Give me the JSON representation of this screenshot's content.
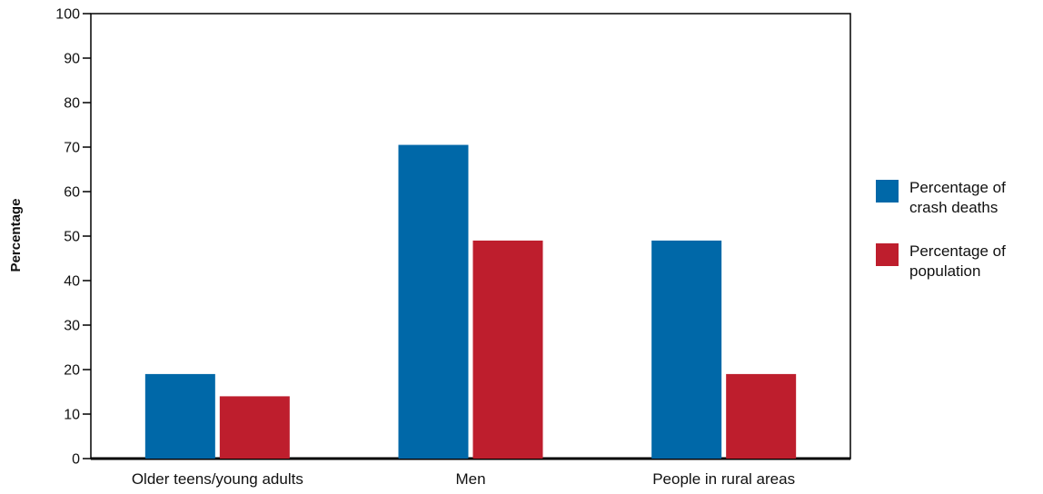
{
  "chart_data": {
    "type": "bar",
    "title": "",
    "xlabel": "",
    "ylabel": "Percentage",
    "ylim": [
      0,
      100
    ],
    "yticks": [
      0,
      10,
      20,
      30,
      40,
      50,
      60,
      70,
      80,
      90,
      100
    ],
    "categories": [
      "Older teens/young adults",
      "Men",
      "People in rural areas"
    ],
    "series": [
      {
        "name": "Percentage of crash deaths",
        "legend_lines": [
          "Percentage of",
          "crash deaths"
        ],
        "color": "#0068a8",
        "values": [
          19,
          70.5,
          49
        ]
      },
      {
        "name": "Percentage of population",
        "legend_lines": [
          "Percentage of",
          "population"
        ],
        "color": "#be1e2d",
        "values": [
          14,
          49,
          19
        ]
      }
    ],
    "grid": false,
    "legend_position": "right"
  }
}
